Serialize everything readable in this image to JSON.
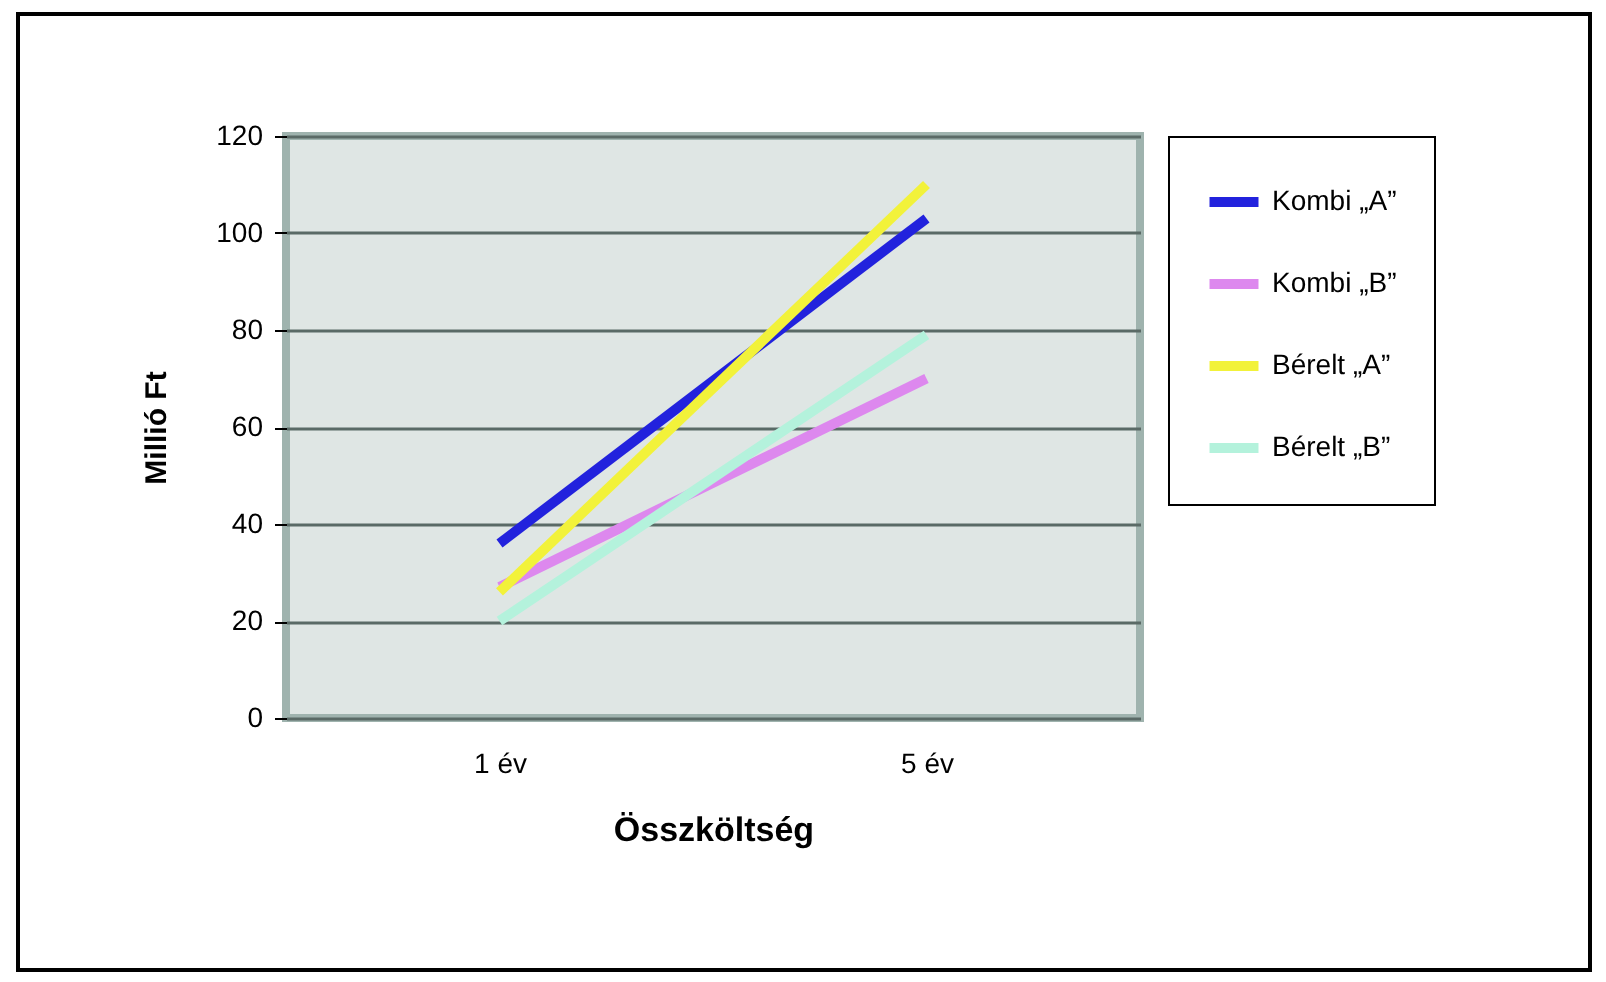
{
  "chart_data": {
    "type": "line",
    "xlabel": "Összköltség",
    "ylabel": "Millió Ft",
    "categories": [
      "1 év",
      "5 év"
    ],
    "series": [
      {
        "name": "Kombi „A”",
        "color": "#2222dd",
        "values": [
          36,
          103
        ]
      },
      {
        "name": "Kombi „B”",
        "color": "#dd88ee",
        "values": [
          27,
          70
        ]
      },
      {
        "name": "Bérelt „A”",
        "color": "#f2f23a",
        "values": [
          26,
          110
        ]
      },
      {
        "name": "Bérelt „B”",
        "color": "#b4f2dc",
        "values": [
          20,
          79
        ]
      }
    ],
    "ylim": [
      0,
      120
    ],
    "yticks": [
      0,
      20,
      40,
      60,
      80,
      100,
      120
    ],
    "grid": "y",
    "legend": "right",
    "marker": "none",
    "line_style": "solid"
  }
}
